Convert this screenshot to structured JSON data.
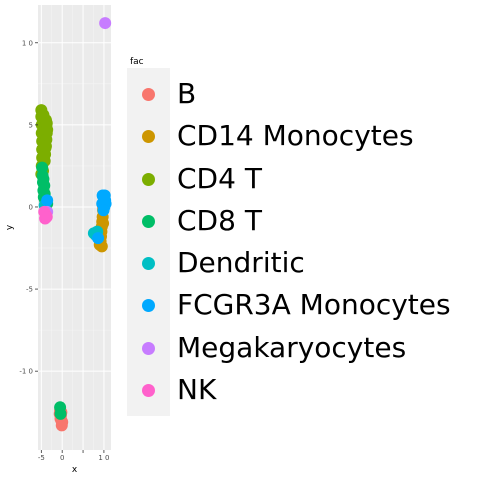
{
  "chart_data": {
    "type": "scatter",
    "title": "",
    "xlabel": "x",
    "ylabel": "y",
    "xlim": [
      -5.8,
      11.7
    ],
    "ylim": [
      -14.8,
      12.3
    ],
    "x_ticks": [
      -5,
      0,
      5,
      10
    ],
    "x_tick_labels": [
      "-5",
      "0",
      "",
      "1 0"
    ],
    "y_ticks": [
      10,
      5,
      0,
      -5,
      -10
    ],
    "y_tick_labels": [
      "1 0",
      "5",
      "0",
      "-5",
      "-1 0"
    ],
    "grid": true,
    "legend_title": "fac",
    "legend_position": "right",
    "series": [
      {
        "name": "B",
        "color": "#F8766D",
        "points": [
          [
            -0.5,
            -12.4
          ],
          [
            -0.3,
            -12.7
          ],
          [
            -0.2,
            -13.0
          ],
          [
            -0.1,
            -13.3
          ],
          [
            -0.4,
            -12.9
          ],
          [
            -0.6,
            -12.6
          ],
          [
            0.0,
            -13.1
          ],
          [
            -0.2,
            -12.5
          ],
          [
            9.8,
            0.0
          ]
        ]
      },
      {
        "name": "CD14 Monocytes",
        "color": "#CD9600",
        "points": [
          [
            9.0,
            -2.3
          ],
          [
            9.3,
            -1.8
          ],
          [
            9.5,
            -1.2
          ],
          [
            9.7,
            -0.6
          ],
          [
            9.8,
            -0.2
          ],
          [
            9.4,
            -1.5
          ],
          [
            9.6,
            -0.9
          ],
          [
            9.2,
            -2.1
          ],
          [
            9.9,
            0.3
          ],
          [
            9.1,
            -1.9
          ],
          [
            9.5,
            -2.4
          ],
          [
            9.8,
            -1.0
          ]
        ]
      },
      {
        "name": "CD4 T",
        "color": "#7CAE00",
        "points": [
          [
            -5.0,
            5.9
          ],
          [
            -5.0,
            5.5
          ],
          [
            -4.9,
            5.0
          ],
          [
            -4.9,
            4.5
          ],
          [
            -4.8,
            4.0
          ],
          [
            -4.8,
            3.5
          ],
          [
            -4.8,
            3.0
          ],
          [
            -4.9,
            2.5
          ],
          [
            -5.0,
            2.0
          ],
          [
            -4.5,
            5.6
          ],
          [
            -4.3,
            5.2
          ],
          [
            -4.2,
            4.8
          ],
          [
            -4.1,
            4.4
          ],
          [
            -4.0,
            4.0
          ],
          [
            -4.0,
            3.6
          ],
          [
            -4.1,
            3.2
          ],
          [
            -4.2,
            2.8
          ],
          [
            -3.9,
            5.3
          ],
          [
            -3.8,
            4.9
          ],
          [
            -3.7,
            4.5
          ],
          [
            -3.8,
            4.1
          ],
          [
            -3.9,
            3.7
          ],
          [
            -4.6,
            2.2
          ],
          [
            -4.4,
            3.0
          ],
          [
            -3.6,
            4.7
          ],
          [
            -3.7,
            5.1
          ]
        ]
      },
      {
        "name": "CD8 T",
        "color": "#00BE67",
        "points": [
          [
            -4.8,
            2.4
          ],
          [
            -4.7,
            1.9
          ],
          [
            -4.6,
            1.5
          ],
          [
            -4.5,
            1.0
          ],
          [
            -4.4,
            0.6
          ],
          [
            -4.3,
            1.3
          ],
          [
            -4.2,
            0.8
          ],
          [
            -4.5,
            1.7
          ],
          [
            -4.1,
            0.4
          ],
          [
            -3.6,
            0.2
          ],
          [
            -0.5,
            -12.2
          ],
          [
            -0.4,
            -12.6
          ]
        ]
      },
      {
        "name": "Dendritic",
        "color": "#00BFC4",
        "points": [
          [
            7.6,
            -1.6
          ],
          [
            8.0,
            -1.7
          ],
          [
            8.4,
            -1.5
          ],
          [
            -4.0,
            -0.2
          ],
          [
            -4.2,
            0.1
          ]
        ]
      },
      {
        "name": "FCGR3A Monocytes",
        "color": "#00A9FF",
        "points": [
          [
            10.0,
            0.6
          ],
          [
            10.3,
            0.4
          ],
          [
            10.1,
            0.0
          ],
          [
            9.7,
            0.7
          ],
          [
            10.4,
            0.2
          ],
          [
            9.6,
            0.2
          ],
          [
            8.6,
            -1.9
          ],
          [
            10.2,
            0.7
          ],
          [
            9.9,
            -0.2
          ],
          [
            -3.6,
            0.4
          ]
        ]
      },
      {
        "name": "Megakaryocytes",
        "color": "#C77CFF",
        "points": [
          [
            10.3,
            11.2
          ],
          [
            -3.9,
            -0.6
          ],
          [
            -3.6,
            -0.3
          ]
        ]
      },
      {
        "name": "NK",
        "color": "#FF61CC",
        "points": [
          [
            -4.1,
            -0.7
          ],
          [
            -3.9,
            -0.5
          ],
          [
            -4.3,
            -0.3
          ],
          [
            -3.7,
            -0.6
          ]
        ]
      }
    ]
  }
}
